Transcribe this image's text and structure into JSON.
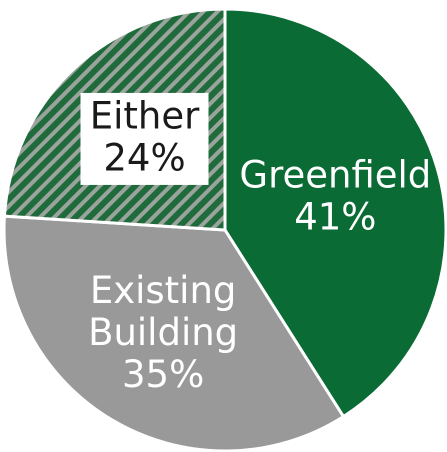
{
  "chart_data": {
    "type": "pie",
    "start_angle_deg": 0,
    "direction": "clockwise",
    "slices": [
      {
        "label": "Greenfield",
        "value": 41,
        "value_label": "41%",
        "color": "#0b6b35",
        "text_color": "#ffffff",
        "pattern": "solid"
      },
      {
        "label": "Existing Building",
        "label_lines": [
          "Existing",
          "Building"
        ],
        "value": 35,
        "value_label": "35%",
        "color": "#999999",
        "text_color": "#ffffff",
        "pattern": "solid"
      },
      {
        "label": "Either",
        "value": 24,
        "value_label": "24%",
        "color": "#1f6b3c",
        "stripe_color": "#9aa39c",
        "text_color": "#1a1a1a",
        "pattern": "diagonal-stripes",
        "label_box": "#ffffff"
      }
    ]
  }
}
